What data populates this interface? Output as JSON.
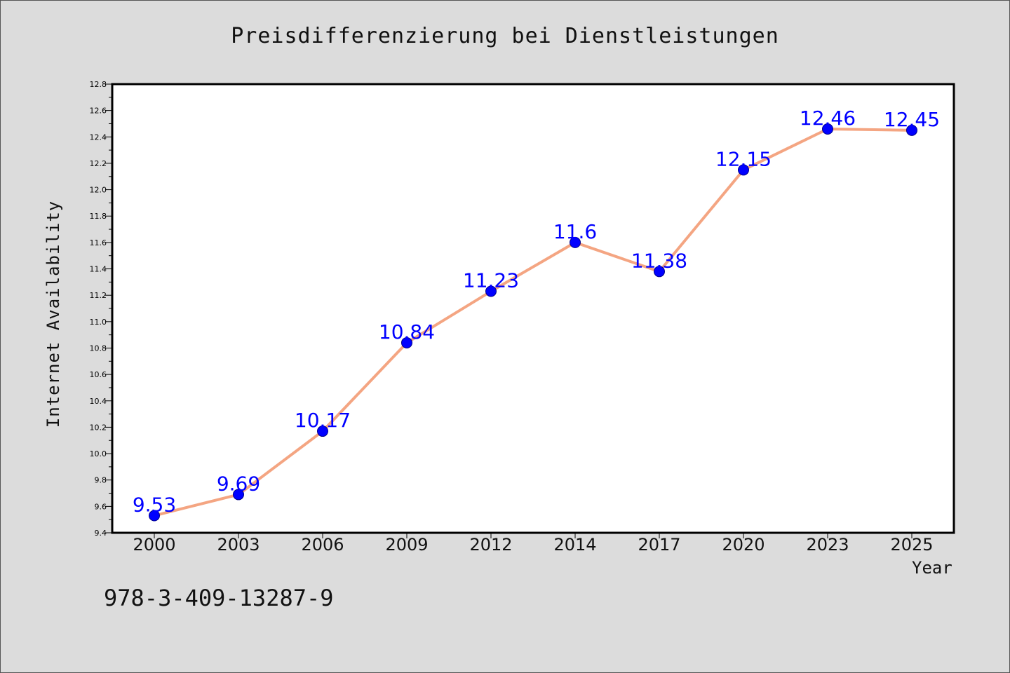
{
  "title": "Preisdifferenzierung bei Dienstleistungen",
  "isbn": "978-3-409-13287-9",
  "colors": {
    "background": "#dcdcdc",
    "plot_background": "#ffffff",
    "line": "#f4a582",
    "marker": "#0000ff",
    "label": "#0000ff"
  },
  "chart_data": {
    "type": "line",
    "xlabel": "Year",
    "ylabel": "Internet Availability",
    "categories": [
      "2000",
      "2003",
      "2006",
      "2009",
      "2012",
      "2014",
      "2017",
      "2020",
      "2023",
      "2025"
    ],
    "values": [
      9.53,
      9.69,
      10.17,
      10.84,
      11.23,
      11.6,
      11.38,
      12.15,
      12.46,
      12.45
    ],
    "data_labels": [
      "9.53",
      "9.69",
      "10.17",
      "10.84",
      "11.23",
      "11.6",
      "11.38",
      "12.15",
      "12.46",
      "12.45"
    ],
    "ylim": [
      9.4,
      12.8
    ],
    "yticks": [
      "9.4",
      "9.6",
      "9.8",
      "10.0",
      "10.2",
      "10.4",
      "10.6",
      "10.8",
      "11.0",
      "11.2",
      "11.4",
      "11.6",
      "11.8",
      "12.0",
      "12.2",
      "12.4",
      "12.6",
      "12.8"
    ],
    "grid": false,
    "legend": "none"
  }
}
